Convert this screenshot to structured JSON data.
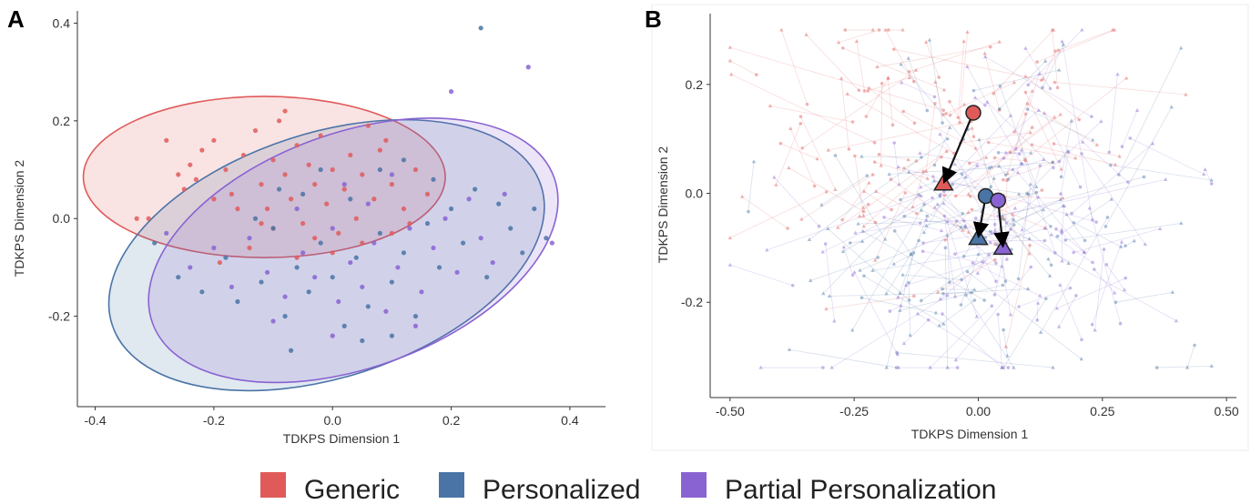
{
  "legend": {
    "items": [
      {
        "label": "Generic",
        "color": "#e05a5a"
      },
      {
        "label": "Personalized",
        "color": "#4a74a6"
      },
      {
        "label": "Partial Personalization",
        "color": "#8a63d2"
      }
    ]
  },
  "chart_data": [
    {
      "panel": "A",
      "type": "scatter",
      "xlabel": "TDKPS Dimension 1",
      "ylabel": "TDKPS Dimension 2",
      "xlim": [
        -0.43,
        0.46
      ],
      "ylim": [
        -0.385,
        0.425
      ],
      "xticks": [
        -0.4,
        -0.2,
        0.0,
        0.2,
        0.4
      ],
      "xtick_labels": [
        "-0.4",
        "-0.2",
        "0.0",
        "0.2",
        "0.4"
      ],
      "yticks": [
        -0.2,
        0.0,
        0.2,
        0.4
      ],
      "ytick_labels": [
        "-0.2",
        "0.0",
        "0.2",
        "0.4"
      ],
      "grid": false,
      "series": [
        {
          "name": "Generic",
          "color": "#e05a5a",
          "ellipse": {
            "cx": -0.115,
            "cy": 0.085,
            "rx": 0.305,
            "ry": 0.165,
            "angle": 0
          },
          "points": [
            [
              -0.33,
              0.0
            ],
            [
              -0.31,
              0.0
            ],
            [
              -0.28,
              0.16
            ],
            [
              -0.26,
              0.09
            ],
            [
              -0.25,
              0.06
            ],
            [
              -0.24,
              0.11
            ],
            [
              -0.22,
              0.14
            ],
            [
              -0.2,
              0.16
            ],
            [
              -0.18,
              0.1
            ],
            [
              -0.17,
              0.05
            ],
            [
              -0.15,
              0.13
            ],
            [
              -0.13,
              0.18
            ],
            [
              -0.12,
              0.07
            ],
            [
              -0.11,
              0.02
            ],
            [
              -0.1,
              0.12
            ],
            [
              -0.09,
              0.2
            ],
            [
              -0.08,
              0.09
            ],
            [
              -0.07,
              0.04
            ],
            [
              -0.06,
              0.15
            ],
            [
              -0.05,
              -0.01
            ],
            [
              -0.04,
              0.11
            ],
            [
              -0.03,
              0.07
            ],
            [
              -0.02,
              0.17
            ],
            [
              -0.01,
              0.03
            ],
            [
              0.0,
              0.1
            ],
            [
              0.01,
              -0.03
            ],
            [
              0.02,
              0.06
            ],
            [
              0.03,
              0.13
            ],
            [
              0.04,
              0.0
            ],
            [
              0.05,
              0.09
            ],
            [
              0.07,
              0.04
            ],
            [
              0.08,
              0.14
            ],
            [
              0.1,
              0.07
            ],
            [
              0.12,
              0.02
            ],
            [
              0.14,
              0.1
            ],
            [
              0.16,
              0.05
            ],
            [
              -0.19,
              -0.09
            ],
            [
              -0.14,
              -0.06
            ],
            [
              -0.1,
              -0.02
            ],
            [
              -0.06,
              -0.08
            ],
            [
              -0.03,
              -0.04
            ],
            [
              0.0,
              -0.07
            ],
            [
              0.05,
              -0.05
            ],
            [
              0.1,
              -0.03
            ],
            [
              -0.16,
              0.02
            ],
            [
              -0.12,
              -0.01
            ],
            [
              -0.08,
              0.22
            ],
            [
              -0.2,
              0.04
            ],
            [
              0.09,
              0.16
            ],
            [
              0.13,
              -0.01
            ],
            [
              -0.23,
              0.08
            ],
            [
              0.06,
              0.19
            ]
          ]
        },
        {
          "name": "Personalized",
          "color": "#4a74a6",
          "ellipse": {
            "cx": -0.01,
            "cy": -0.075,
            "rx": 0.38,
            "ry": 0.25,
            "angle": -18
          },
          "points": [
            [
              -0.3,
              -0.05
            ],
            [
              -0.26,
              -0.12
            ],
            [
              -0.22,
              -0.15
            ],
            [
              -0.18,
              -0.08
            ],
            [
              -0.16,
              -0.17
            ],
            [
              -0.12,
              -0.13
            ],
            [
              -0.1,
              -0.02
            ],
            [
              -0.08,
              -0.2
            ],
            [
              -0.06,
              -0.1
            ],
            [
              -0.04,
              -0.15
            ],
            [
              -0.02,
              -0.05
            ],
            [
              0.0,
              -0.12
            ],
            [
              0.02,
              -0.22
            ],
            [
              0.04,
              -0.08
            ],
            [
              0.06,
              -0.18
            ],
            [
              0.08,
              -0.03
            ],
            [
              0.1,
              -0.13
            ],
            [
              0.12,
              -0.07
            ],
            [
              0.14,
              -0.2
            ],
            [
              0.16,
              -0.01
            ],
            [
              0.18,
              -0.1
            ],
            [
              0.2,
              0.02
            ],
            [
              0.22,
              -0.05
            ],
            [
              0.24,
              0.06
            ],
            [
              0.26,
              -0.12
            ],
            [
              0.28,
              0.03
            ],
            [
              0.3,
              -0.02
            ],
            [
              0.32,
              -0.07
            ],
            [
              0.34,
              0.02
            ],
            [
              -0.05,
              0.05
            ],
            [
              -0.02,
              0.1
            ],
            [
              0.03,
              0.04
            ],
            [
              0.08,
              0.1
            ],
            [
              0.12,
              0.12
            ],
            [
              0.17,
              0.08
            ],
            [
              -0.09,
              0.06
            ],
            [
              -0.13,
              0.0
            ],
            [
              -0.07,
              -0.27
            ],
            [
              0.05,
              -0.25
            ],
            [
              0.25,
              0.39
            ],
            [
              0.36,
              -0.04
            ],
            [
              0.1,
              -0.24
            ]
          ]
        },
        {
          "name": "Partial Personalization",
          "color": "#8a63d2",
          "ellipse": {
            "cx": 0.035,
            "cy": -0.065,
            "rx": 0.36,
            "ry": 0.24,
            "angle": -20
          },
          "points": [
            [
              -0.28,
              -0.03
            ],
            [
              -0.24,
              -0.1
            ],
            [
              -0.2,
              -0.06
            ],
            [
              -0.17,
              -0.14
            ],
            [
              -0.14,
              -0.04
            ],
            [
              -0.11,
              -0.11
            ],
            [
              -0.08,
              -0.16
            ],
            [
              -0.05,
              -0.07
            ],
            [
              -0.03,
              -0.12
            ],
            [
              0.0,
              -0.02
            ],
            [
              0.01,
              -0.17
            ],
            [
              0.03,
              -0.09
            ],
            [
              0.05,
              -0.14
            ],
            [
              0.07,
              -0.05
            ],
            [
              0.09,
              -0.19
            ],
            [
              0.11,
              -0.1
            ],
            [
              0.13,
              -0.02
            ],
            [
              0.15,
              -0.15
            ],
            [
              0.17,
              -0.06
            ],
            [
              0.19,
              0.0
            ],
            [
              0.21,
              -0.11
            ],
            [
              0.23,
              0.04
            ],
            [
              0.25,
              -0.04
            ],
            [
              0.27,
              -0.09
            ],
            [
              0.29,
              0.05
            ],
            [
              -0.06,
              0.02
            ],
            [
              0.02,
              0.07
            ],
            [
              0.06,
              0.03
            ],
            [
              0.1,
              0.09
            ],
            [
              -0.1,
              -0.21
            ],
            [
              0.0,
              -0.24
            ],
            [
              0.2,
              0.26
            ],
            [
              0.33,
              0.31
            ],
            [
              0.37,
              -0.05
            ],
            [
              0.14,
              -0.22
            ]
          ]
        }
      ]
    },
    {
      "panel": "B",
      "type": "scatter",
      "xlabel": "TDKPS Dimension 1",
      "ylabel": "TDKPS Dimension 2",
      "xlim": [
        -0.54,
        0.52
      ],
      "ylim": [
        -0.375,
        0.33
      ],
      "xticks": [
        -0.5,
        -0.25,
        0.0,
        0.25,
        0.5
      ],
      "xtick_labels": [
        "-0.50",
        "-0.25",
        "0.00",
        "0.25",
        "0.50"
      ],
      "yticks": [
        -0.2,
        0.0,
        0.2
      ],
      "ytick_labels": [
        "-0.2",
        "0.0",
        "0.2"
      ],
      "grid": false,
      "series": [
        {
          "name": "Generic",
          "color": "#e05a5a",
          "mean_start": [
            -0.01,
            0.148
          ],
          "mean_end": [
            -0.07,
            0.018
          ]
        },
        {
          "name": "Personalized",
          "color": "#4a74a6",
          "mean_start": [
            0.015,
            -0.005
          ],
          "mean_end": [
            0.0,
            -0.082
          ]
        },
        {
          "name": "Partial Personalization",
          "color": "#8a63d2",
          "mean_start": [
            0.04,
            -0.013
          ],
          "mean_end": [
            0.05,
            -0.1
          ]
        }
      ]
    }
  ]
}
